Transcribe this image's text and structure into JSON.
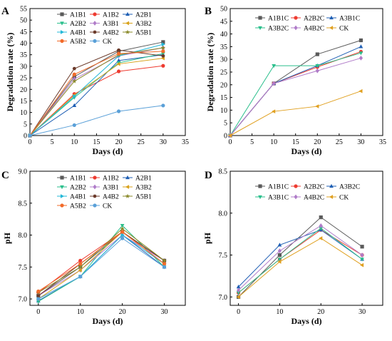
{
  "chart_data": [
    {
      "type": "line",
      "panel": "A",
      "xlabel": "Days (d)",
      "ylabel": "Degradation rate (%)",
      "xlim": [
        0,
        35
      ],
      "ylim": [
        0,
        55
      ],
      "xticks": [
        0,
        5,
        10,
        15,
        20,
        25,
        30,
        35
      ],
      "yticks": [
        0,
        5,
        10,
        15,
        20,
        25,
        30,
        35,
        40,
        45,
        50,
        55
      ],
      "x": [
        0,
        10,
        20,
        30
      ],
      "legend_columns": 3,
      "series": [
        {
          "name": "A1B1",
          "color": "#5a5a5a",
          "marker": "square",
          "values": [
            0,
            25.5,
            36.5,
            40.5
          ]
        },
        {
          "name": "A1B2",
          "color": "#ee3b30",
          "marker": "circle",
          "values": [
            0,
            18,
            27.8,
            30.2
          ]
        },
        {
          "name": "A2B1",
          "color": "#1f5fb4",
          "marker": "triangle-up",
          "values": [
            0,
            13,
            32.5,
            35
          ]
        },
        {
          "name": "A2B2",
          "color": "#2bbf8c",
          "marker": "triangle-down",
          "values": [
            0,
            16.5,
            31.5,
            35.5
          ]
        },
        {
          "name": "A3B1",
          "color": "#b07cc9",
          "marker": "diamond",
          "values": [
            0,
            24.5,
            34.5,
            38
          ]
        },
        {
          "name": "A3B2",
          "color": "#d9a21b",
          "marker": "triangle-left",
          "values": [
            0,
            17.5,
            31,
            33.5
          ]
        },
        {
          "name": "A4B1",
          "color": "#23b8d8",
          "marker": "triangle-right",
          "values": [
            0,
            17,
            34.5,
            39.5
          ]
        },
        {
          "name": "A4B2",
          "color": "#6b3a2a",
          "marker": "hexagon",
          "values": [
            0,
            29,
            37,
            34.5
          ]
        },
        {
          "name": "A5B1",
          "color": "#8a8a2a",
          "marker": "star",
          "values": [
            0,
            23.5,
            35,
            38
          ]
        },
        {
          "name": "A5B2",
          "color": "#f26b2a",
          "marker": "circle",
          "values": [
            0,
            26.5,
            35.5,
            36.5
          ]
        },
        {
          "name": "CK",
          "color": "#5aa0d8",
          "marker": "circle",
          "values": [
            0,
            4.5,
            10.5,
            13
          ]
        }
      ]
    },
    {
      "type": "line",
      "panel": "B",
      "xlabel": "Days (d)",
      "ylabel": "Degradation rate (%)",
      "xlim": [
        0,
        35
      ],
      "ylim": [
        0,
        50
      ],
      "xticks": [
        0,
        5,
        10,
        15,
        20,
        25,
        30,
        35
      ],
      "yticks": [
        0,
        5,
        10,
        15,
        20,
        25,
        30,
        35,
        40,
        45,
        50
      ],
      "x": [
        0,
        10,
        20,
        30
      ],
      "legend_columns": 3,
      "series": [
        {
          "name": "A1B1C",
          "color": "#5a5a5a",
          "marker": "square",
          "values": [
            0,
            20.5,
            32,
            37.5
          ]
        },
        {
          "name": "A2B2C",
          "color": "#ee3b30",
          "marker": "circle",
          "values": [
            0,
            20.5,
            27,
            33
          ]
        },
        {
          "name": "A3B1C",
          "color": "#1f5fb4",
          "marker": "triangle-up",
          "values": [
            0,
            20.5,
            27.5,
            35
          ]
        },
        {
          "name": "A3B2C",
          "color": "#2bbf8c",
          "marker": "triangle-down",
          "values": [
            0,
            27.5,
            27.5,
            32.5
          ]
        },
        {
          "name": "A4B2C",
          "color": "#b07cc9",
          "marker": "diamond",
          "values": [
            0,
            20.5,
            25.5,
            30.5
          ]
        },
        {
          "name": "CK",
          "color": "#e0a020",
          "marker": "triangle-left",
          "values": [
            0,
            9.5,
            11.5,
            17.5
          ]
        }
      ]
    },
    {
      "type": "line",
      "panel": "C",
      "xlabel": "Days (d)",
      "ylabel": "pH",
      "xlim": [
        -2,
        35
      ],
      "ylim": [
        6.9,
        9.0
      ],
      "xticks": [
        0,
        10,
        20,
        30
      ],
      "yticks": [
        7.0,
        7.5,
        8.0,
        8.5,
        9.0
      ],
      "ytick_format": 1,
      "x": [
        0,
        10,
        20,
        30
      ],
      "legend_columns": 3,
      "series": [
        {
          "name": "A1B1",
          "color": "#5a5a5a",
          "marker": "square",
          "values": [
            7.05,
            7.5,
            8.05,
            7.6
          ]
        },
        {
          "name": "A1B2",
          "color": "#ee3b30",
          "marker": "circle",
          "values": [
            7.1,
            7.6,
            8.05,
            7.55
          ]
        },
        {
          "name": "A2B1",
          "color": "#1f5fb4",
          "marker": "triangle-up",
          "values": [
            6.97,
            7.35,
            8.0,
            7.5
          ]
        },
        {
          "name": "A2B2",
          "color": "#2bbf8c",
          "marker": "triangle-down",
          "values": [
            6.96,
            7.35,
            8.15,
            7.5
          ]
        },
        {
          "name": "A3B1",
          "color": "#b07cc9",
          "marker": "diamond",
          "values": [
            7.05,
            7.45,
            8.0,
            7.6
          ]
        },
        {
          "name": "A3B2",
          "color": "#d9a21b",
          "marker": "triangle-left",
          "values": [
            7.0,
            7.45,
            8.05,
            7.55
          ]
        },
        {
          "name": "A4B1",
          "color": "#23b8d8",
          "marker": "triangle-right",
          "values": [
            7.0,
            7.35,
            8.0,
            7.55
          ]
        },
        {
          "name": "A4B2",
          "color": "#6b3a2a",
          "marker": "hexagon",
          "values": [
            7.05,
            7.55,
            8.05,
            7.6
          ]
        },
        {
          "name": "A5B1",
          "color": "#8a8a2a",
          "marker": "star",
          "values": [
            7.1,
            7.5,
            8.1,
            7.6
          ]
        },
        {
          "name": "A5B2",
          "color": "#f26b2a",
          "marker": "circle",
          "values": [
            7.12,
            7.55,
            8.05,
            7.55
          ]
        },
        {
          "name": "CK",
          "color": "#5aa0d8",
          "marker": "circle",
          "values": [
            7.0,
            7.35,
            7.95,
            7.5
          ]
        }
      ]
    },
    {
      "type": "line",
      "panel": "D",
      "xlabel": "Days (d)",
      "ylabel": "pH",
      "xlim": [
        -2,
        35
      ],
      "ylim": [
        6.9,
        8.5
      ],
      "xticks": [
        0,
        10,
        20,
        30
      ],
      "yticks": [
        7.0,
        7.5,
        8.0,
        8.5
      ],
      "ytick_format": 1,
      "x": [
        0,
        10,
        20,
        30
      ],
      "legend_columns": 3,
      "series": [
        {
          "name": "A1B1C",
          "color": "#5a5a5a",
          "marker": "square",
          "values": [
            7.0,
            7.5,
            7.95,
            7.6
          ]
        },
        {
          "name": "A2B2C",
          "color": "#ee3b30",
          "marker": "circle",
          "values": [
            7.05,
            7.45,
            7.8,
            7.5
          ]
        },
        {
          "name": "A3B2C",
          "color": "#1f5fb4",
          "marker": "triangle-up",
          "values": [
            7.12,
            7.62,
            7.8,
            7.45
          ]
        },
        {
          "name": "A3B1C",
          "color": "#2bbf8c",
          "marker": "triangle-down",
          "values": [
            7.05,
            7.45,
            7.82,
            7.45
          ]
        },
        {
          "name": "A4B2C",
          "color": "#b07cc9",
          "marker": "diamond",
          "values": [
            7.08,
            7.55,
            7.85,
            7.5
          ]
        },
        {
          "name": "CK",
          "color": "#e0a020",
          "marker": "triangle-left",
          "values": [
            7.0,
            7.42,
            7.7,
            7.38
          ]
        }
      ]
    }
  ]
}
